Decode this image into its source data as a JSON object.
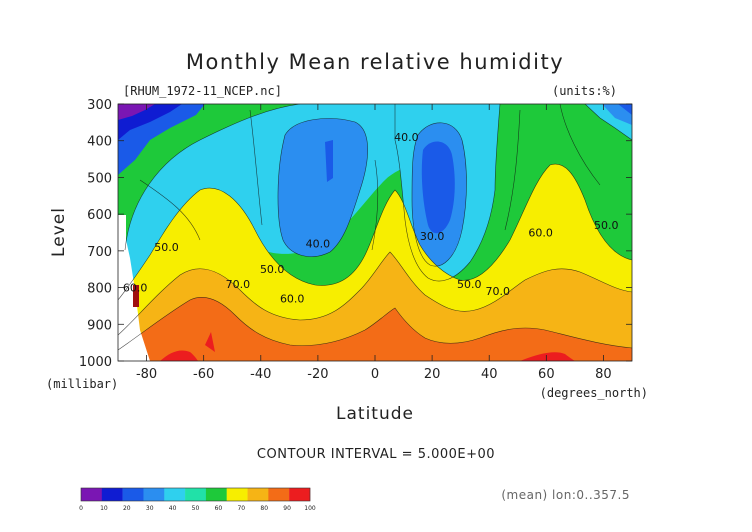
{
  "chart_data": {
    "type": "heatmap",
    "title": "Monthly Mean relative humidity",
    "file_label": "[RHUM_1972-11_NCEP.nc]",
    "units_label": "(units:%)",
    "xlabel": "Latitude",
    "x_unit": "(degrees_north)",
    "ylabel": "Level",
    "y_unit": "(millibar)",
    "xlim": [
      -90,
      90
    ],
    "ylim": [
      1000,
      300
    ],
    "x_ticks": [
      -80,
      -60,
      -40,
      -20,
      0,
      20,
      40,
      60,
      80
    ],
    "y_ticks": [
      300,
      400,
      500,
      600,
      700,
      800,
      900,
      1000
    ],
    "contour_interval_text": "CONTOUR INTERVAL = 5.000E+00",
    "mean_text": "(mean) lon:0..357.5",
    "contour_labels": [
      {
        "text": "40.0",
        "x": 11,
        "p": 390
      },
      {
        "text": "40.0",
        "x": -20,
        "p": 680
      },
      {
        "text": "30.0",
        "x": 20,
        "p": 660
      },
      {
        "text": "50.0",
        "x": -73,
        "p": 690
      },
      {
        "text": "50.0",
        "x": -36,
        "p": 750
      },
      {
        "text": "50.0",
        "x": 33,
        "p": 790
      },
      {
        "text": "50.0",
        "x": 81,
        "p": 630
      },
      {
        "text": "60.0",
        "x": -84,
        "p": 800
      },
      {
        "text": "60.0",
        "x": -29,
        "p": 830
      },
      {
        "text": "60.0",
        "x": 58,
        "p": 650
      },
      {
        "text": "70.0",
        "x": -48,
        "p": 790
      },
      {
        "text": "70.0",
        "x": 43,
        "p": 810
      }
    ],
    "colorbar": {
      "levels": [
        0,
        10,
        20,
        30,
        40,
        50,
        60,
        70,
        80,
        90,
        100
      ],
      "colors": [
        "#7a16b3",
        "#0f1cd2",
        "#1a5ae8",
        "#2b8ef0",
        "#2fd0ee",
        "#21e1a8",
        "#1ec93a",
        "#f7ee00",
        "#f6b415",
        "#f36c17",
        "#ec1d1f"
      ]
    }
  }
}
